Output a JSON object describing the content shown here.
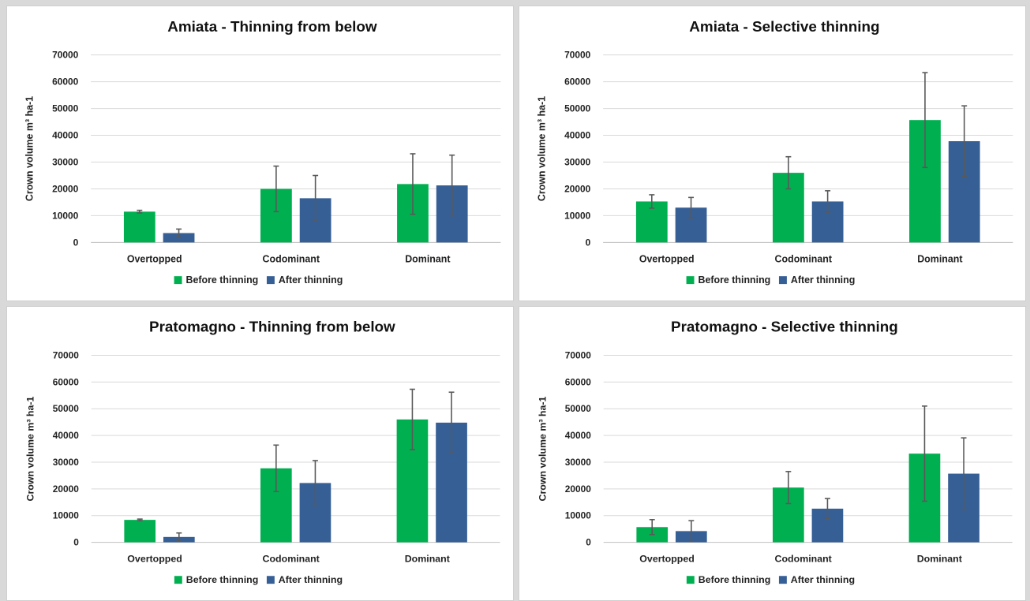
{
  "figure": {
    "colors": {
      "before": "#00b050",
      "after": "#365f96"
    },
    "legend_labels": [
      "Before thinning",
      "After thinning"
    ]
  },
  "chart_data": [
    {
      "type": "bar",
      "title": "Amiata -  Thinning from below",
      "ylabel": "Crown volume m³ ha-1",
      "xlabel": "",
      "ylim": [
        0,
        70000
      ],
      "yticks": [
        0,
        10000,
        20000,
        30000,
        40000,
        50000,
        60000,
        70000
      ],
      "categories": [
        "Overtopped",
        "Codominant",
        "Dominant"
      ],
      "legend_position": "bottom",
      "grid": true,
      "series": [
        {
          "name": "Before thinning",
          "values": [
            11500,
            20000,
            21800
          ],
          "error": [
            500,
            8500,
            11300
          ]
        },
        {
          "name": "After thinning",
          "values": [
            3500,
            16500,
            21300
          ],
          "error": [
            1500,
            8500,
            11300
          ]
        }
      ]
    },
    {
      "type": "bar",
      "title": "Amiata - Selective thinning",
      "ylabel": "Crown volume m³ ha-1",
      "xlabel": "",
      "ylim": [
        0,
        70000
      ],
      "yticks": [
        0,
        10000,
        20000,
        30000,
        40000,
        50000,
        60000,
        70000
      ],
      "categories": [
        "Overtopped",
        "Codominant",
        "Dominant"
      ],
      "legend_position": "bottom",
      "grid": true,
      "series": [
        {
          "name": "Before thinning",
          "values": [
            15300,
            26000,
            45700
          ],
          "error": [
            2500,
            6000,
            17700
          ]
        },
        {
          "name": "After thinning",
          "values": [
            13000,
            15300,
            37800
          ],
          "error": [
            3800,
            4000,
            13200
          ]
        }
      ]
    },
    {
      "type": "bar",
      "title": "Pratomagno -  Thinning from below",
      "ylabel": "Crown volume m³ ha-1",
      "xlabel": "",
      "ylim": [
        0,
        70000
      ],
      "yticks": [
        0,
        10000,
        20000,
        30000,
        40000,
        50000,
        60000,
        70000
      ],
      "categories": [
        "Overtopped",
        "Codominant",
        "Dominant"
      ],
      "legend_position": "bottom",
      "grid": true,
      "series": [
        {
          "name": "Before thinning",
          "values": [
            8400,
            27700,
            46000
          ],
          "error": [
            300,
            8700,
            11300
          ]
        },
        {
          "name": "After thinning",
          "values": [
            2000,
            22200,
            44800
          ],
          "error": [
            1500,
            8400,
            11400
          ]
        }
      ]
    },
    {
      "type": "bar",
      "title": "Pratomagno - Selective thinning",
      "ylabel": "Crown volume m³ ha-1",
      "xlabel": "",
      "ylim": [
        0,
        70000
      ],
      "yticks": [
        0,
        10000,
        20000,
        30000,
        40000,
        50000,
        60000,
        70000
      ],
      "categories": [
        "Overtopped",
        "Codominant",
        "Dominant"
      ],
      "legend_position": "bottom",
      "grid": true,
      "series": [
        {
          "name": "Before thinning",
          "values": [
            5700,
            20500,
            33200
          ],
          "error": [
            2800,
            6000,
            17800
          ]
        },
        {
          "name": "After thinning",
          "values": [
            4200,
            12600,
            25700
          ],
          "error": [
            3900,
            3800,
            13400
          ]
        }
      ]
    }
  ]
}
